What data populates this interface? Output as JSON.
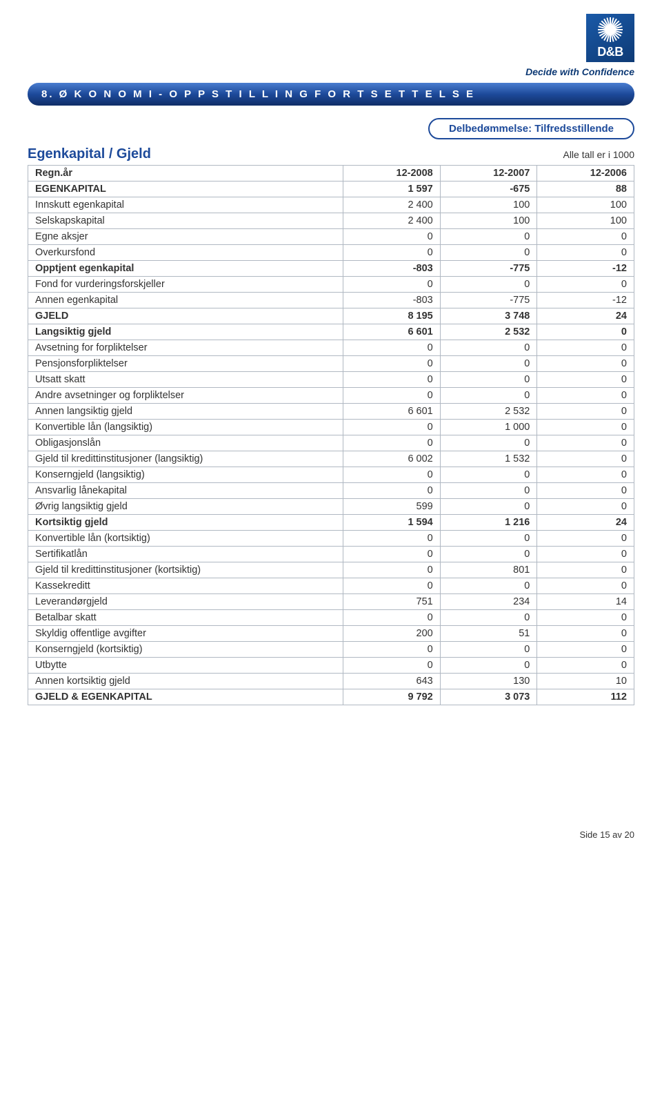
{
  "brand": {
    "logo_text": "D&B",
    "tagline": "Decide with Confidence",
    "logo_bg": "#0e3a75",
    "tagline_color": "#0e3a75"
  },
  "section": {
    "title": "8.  Ø K O N O M I  -  O P P S T I L L I N G  F O R T S E T T E L S E",
    "bar_gradient_top": "#4a7dd0",
    "bar_gradient_bottom": "#102d66"
  },
  "rating_pill": {
    "label": "Delbedømmelse: Tilfredsstillende",
    "border_color": "#1d4a9a"
  },
  "subtitle": "Egenkapital / Gjeld",
  "unit_note": "Alle tall er i 1000",
  "table": {
    "header": {
      "label": "Regn.år",
      "y1": "12-2008",
      "y2": "12-2007",
      "y3": "12-2006"
    },
    "rows": [
      {
        "label": "EGENKAPITAL",
        "v": [
          "1 597",
          "-675",
          "88"
        ],
        "bold": true
      },
      {
        "label": "Innskutt egenkapital",
        "v": [
          "2 400",
          "100",
          "100"
        ]
      },
      {
        "label": "Selskapskapital",
        "v": [
          "2 400",
          "100",
          "100"
        ]
      },
      {
        "label": "Egne aksjer",
        "v": [
          "0",
          "0",
          "0"
        ]
      },
      {
        "label": "Overkursfond",
        "v": [
          "0",
          "0",
          "0"
        ]
      },
      {
        "label": "Opptjent egenkapital",
        "v": [
          "-803",
          "-775",
          "-12"
        ],
        "bold": true
      },
      {
        "label": "Fond for vurderingsforskjeller",
        "v": [
          "0",
          "0",
          "0"
        ]
      },
      {
        "label": "Annen egenkapital",
        "v": [
          "-803",
          "-775",
          "-12"
        ]
      },
      {
        "label": "GJELD",
        "v": [
          "8 195",
          "3 748",
          "24"
        ],
        "bold": true
      },
      {
        "label": "Langsiktig gjeld",
        "v": [
          "6 601",
          "2 532",
          "0"
        ],
        "bold": true
      },
      {
        "label": "Avsetning for forpliktelser",
        "v": [
          "0",
          "0",
          "0"
        ]
      },
      {
        "label": "Pensjonsforpliktelser",
        "v": [
          "0",
          "0",
          "0"
        ]
      },
      {
        "label": "Utsatt skatt",
        "v": [
          "0",
          "0",
          "0"
        ]
      },
      {
        "label": "Andre avsetninger og forpliktelser",
        "v": [
          "0",
          "0",
          "0"
        ]
      },
      {
        "label": "Annen langsiktig gjeld",
        "v": [
          "6 601",
          "2 532",
          "0"
        ]
      },
      {
        "label": "Konvertible lån (langsiktig)",
        "v": [
          "0",
          "1 000",
          "0"
        ]
      },
      {
        "label": "Obligasjonslån",
        "v": [
          "0",
          "0",
          "0"
        ]
      },
      {
        "label": "Gjeld til kredittinstitusjoner (langsiktig)",
        "v": [
          "6 002",
          "1 532",
          "0"
        ]
      },
      {
        "label": "Konserngjeld (langsiktig)",
        "v": [
          "0",
          "0",
          "0"
        ]
      },
      {
        "label": "Ansvarlig lånekapital",
        "v": [
          "0",
          "0",
          "0"
        ]
      },
      {
        "label": "Øvrig langsiktig gjeld",
        "v": [
          "599",
          "0",
          "0"
        ]
      },
      {
        "label": "Kortsiktig gjeld",
        "v": [
          "1 594",
          "1 216",
          "24"
        ],
        "bold": true
      },
      {
        "label": "Konvertible lån (kortsiktig)",
        "v": [
          "0",
          "0",
          "0"
        ]
      },
      {
        "label": "Sertifikatlån",
        "v": [
          "0",
          "0",
          "0"
        ]
      },
      {
        "label": "Gjeld til kredittinstitusjoner (kortsiktig)",
        "v": [
          "0",
          "801",
          "0"
        ]
      },
      {
        "label": "Kassekreditt",
        "v": [
          "0",
          "0",
          "0"
        ]
      },
      {
        "label": "Leverandørgjeld",
        "v": [
          "751",
          "234",
          "14"
        ]
      },
      {
        "label": "Betalbar skatt",
        "v": [
          "0",
          "0",
          "0"
        ]
      },
      {
        "label": "Skyldig offentlige avgifter",
        "v": [
          "200",
          "51",
          "0"
        ]
      },
      {
        "label": "Konserngjeld (kortsiktig)",
        "v": [
          "0",
          "0",
          "0"
        ]
      },
      {
        "label": "Utbytte",
        "v": [
          "0",
          "0",
          "0"
        ]
      },
      {
        "label": "Annen kortsiktig gjeld",
        "v": [
          "643",
          "130",
          "10"
        ]
      },
      {
        "label": "GJELD & EGENKAPITAL",
        "v": [
          "9 792",
          "3 073",
          "112"
        ],
        "bold": true
      }
    ]
  },
  "footer": "Side 15 av 20"
}
